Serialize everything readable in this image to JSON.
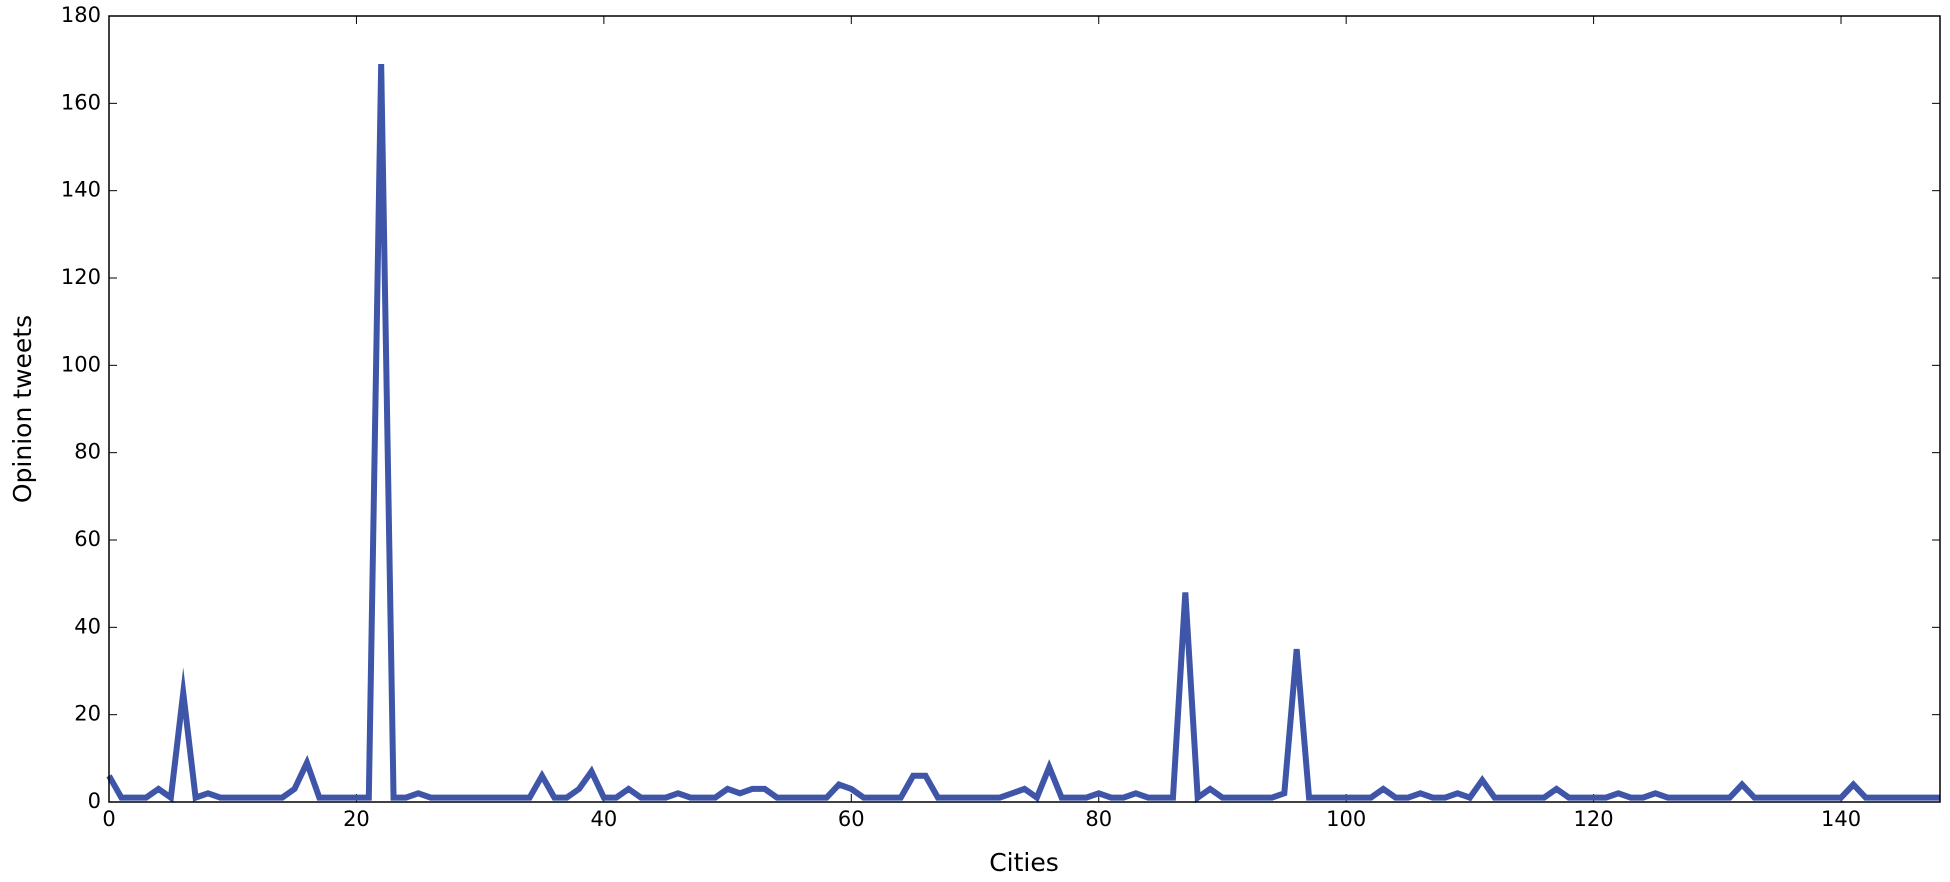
{
  "chart_data": {
    "type": "line",
    "x_label": "Cities",
    "y_label": "Opinion tweets",
    "x": [
      0,
      1,
      2,
      3,
      4,
      5,
      6,
      7,
      8,
      9,
      10,
      11,
      12,
      13,
      14,
      15,
      16,
      17,
      18,
      19,
      20,
      21,
      22,
      23,
      24,
      25,
      26,
      27,
      28,
      29,
      30,
      31,
      32,
      33,
      34,
      35,
      36,
      37,
      38,
      39,
      40,
      41,
      42,
      43,
      44,
      45,
      46,
      47,
      48,
      49,
      50,
      51,
      52,
      53,
      54,
      55,
      56,
      57,
      58,
      59,
      60,
      61,
      62,
      63,
      64,
      65,
      66,
      67,
      68,
      69,
      70,
      71,
      72,
      73,
      74,
      75,
      76,
      77,
      78,
      79,
      80,
      81,
      82,
      83,
      84,
      85,
      86,
      87,
      88,
      89,
      90,
      91,
      92,
      93,
      94,
      95,
      96,
      97,
      98,
      99,
      100,
      101,
      102,
      103,
      104,
      105,
      106,
      107,
      108,
      109,
      110,
      111,
      112,
      113,
      114,
      115,
      116,
      117,
      118,
      119,
      120,
      121,
      122,
      123,
      124,
      125,
      126,
      127,
      128,
      129,
      130,
      131,
      132,
      133,
      134,
      135,
      136,
      137,
      138,
      139,
      140,
      141,
      142,
      143,
      144,
      145,
      146,
      147,
      148
    ],
    "series": [
      {
        "color": "#3f55a8",
        "values": [
          6,
          1,
          1,
          1,
          3,
          1,
          25,
          1,
          2,
          1,
          1,
          1,
          1,
          1,
          1,
          3,
          9,
          1,
          1,
          1,
          1,
          1,
          169,
          1,
          1,
          2,
          1,
          1,
          1,
          1,
          1,
          1,
          1,
          1,
          1,
          6,
          1,
          1,
          3,
          7,
          1,
          1,
          3,
          1,
          1,
          1,
          2,
          1,
          1,
          1,
          3,
          2,
          3,
          3,
          1,
          1,
          1,
          1,
          1,
          4,
          3,
          1,
          1,
          1,
          1,
          6,
          6,
          1,
          1,
          1,
          1,
          1,
          1,
          2,
          3,
          1,
          8,
          1,
          1,
          1,
          2,
          1,
          1,
          2,
          1,
          1,
          1,
          48,
          1,
          3,
          1,
          1,
          1,
          1,
          1,
          2,
          35,
          1,
          1,
          1,
          1,
          1,
          1,
          3,
          1,
          1,
          2,
          1,
          1,
          2,
          1,
          5,
          1,
          1,
          1,
          1,
          1,
          3,
          1,
          1,
          1,
          1,
          2,
          1,
          1,
          2,
          1,
          1,
          1,
          1,
          1,
          1,
          4,
          1,
          1,
          1,
          1,
          1,
          1,
          1,
          1,
          4,
          1,
          1,
          1,
          1,
          1,
          1,
          1
        ]
      }
    ],
    "xlim": [
      0,
      148
    ],
    "ylim": [
      0,
      180
    ],
    "xticks": [
      0,
      20,
      40,
      60,
      80,
      100,
      120,
      140
    ],
    "yticks": [
      0,
      20,
      40,
      60,
      80,
      100,
      120,
      140,
      160,
      180
    ]
  }
}
